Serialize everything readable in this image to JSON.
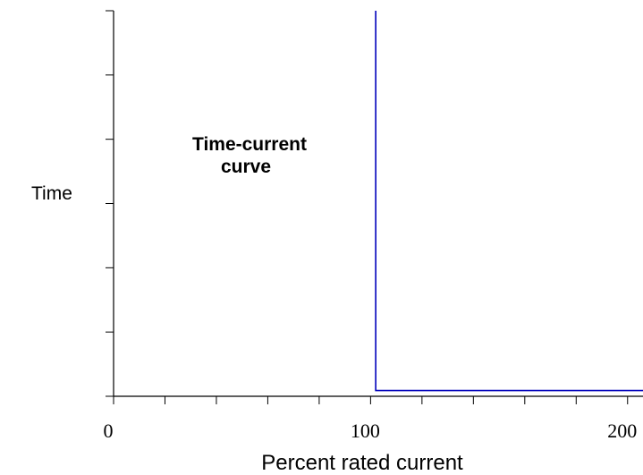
{
  "chart_data": {
    "type": "line",
    "annotation": [
      "Time-current",
      "curve"
    ],
    "xlabel": "Percent rated current",
    "ylabel": "Time",
    "xlim": [
      0,
      206
    ],
    "x_ticks": [
      0,
      20,
      40,
      60,
      80,
      100,
      120,
      140,
      160,
      180,
      200
    ],
    "x_tick_labels": [
      {
        "value": 0,
        "label": "0"
      },
      {
        "value": 100,
        "label": "100"
      },
      {
        "value": 200,
        "label": "200"
      }
    ],
    "y_tick_count": 6,
    "grid": false,
    "series": [
      {
        "color": "#0000bb",
        "points": [
          [
            102,
            1.0
          ],
          [
            102,
            0.015
          ],
          [
            206,
            0.015
          ]
        ]
      }
    ]
  }
}
